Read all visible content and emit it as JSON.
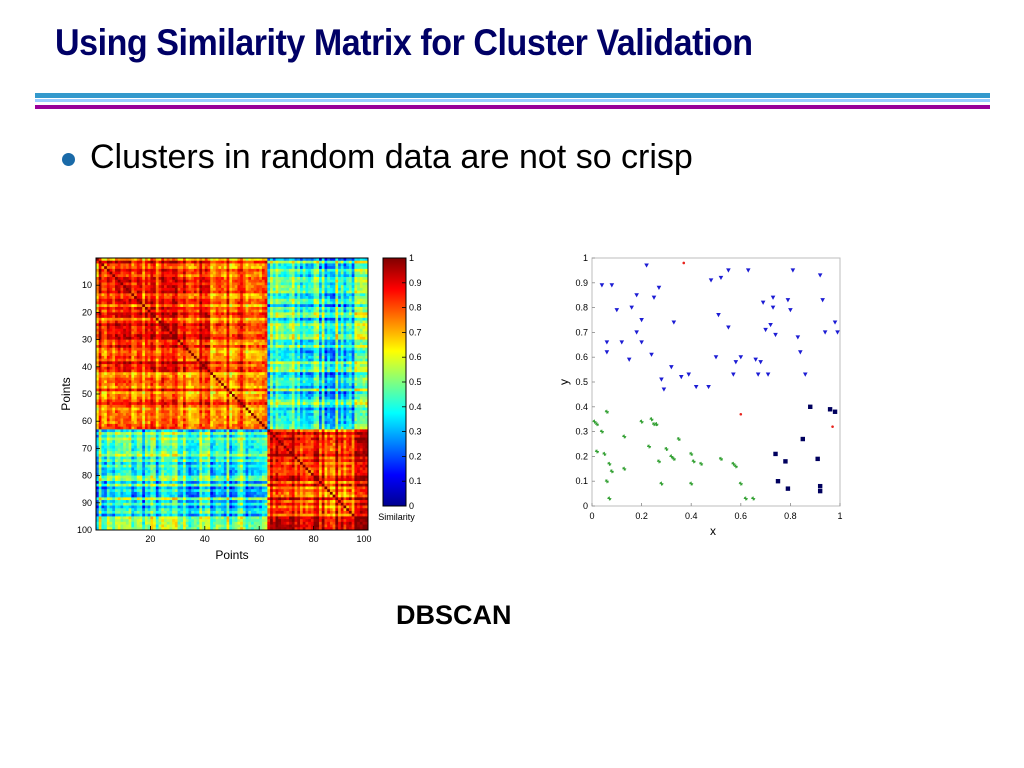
{
  "slide": {
    "title": "Using Similarity Matrix for Cluster Validation",
    "bullet": "Clusters in random data are not so crisp",
    "caption": "DBSCAN",
    "colors": {
      "title": "#000066",
      "rule_teal": "#3399cc",
      "rule_lightblue": "#99ccff",
      "rule_purple": "#990099",
      "bullet_dot": "#1a6aa8"
    }
  },
  "chart_data": [
    {
      "type": "heatmap",
      "xlabel": "Points",
      "ylabel": "Points",
      "xticks": [
        20,
        40,
        60,
        80,
        100
      ],
      "yticks": [
        10,
        20,
        30,
        40,
        50,
        60,
        70,
        80,
        90,
        100
      ],
      "xlim": [
        0,
        100
      ],
      "ylim": [
        0,
        100
      ],
      "colormap": "jet",
      "clusters": [
        {
          "start": 0,
          "end": 63
        },
        {
          "start": 63,
          "end": 100
        }
      ],
      "within_cluster_similarity": 0.82,
      "between_cluster_similarity": 0.4,
      "colorbar": {
        "label": "Similarity",
        "ticks": [
          0,
          0.1,
          0.2,
          0.3,
          0.4,
          0.5,
          0.6,
          0.7,
          0.8,
          0.9,
          1
        ],
        "range": [
          0,
          1
        ]
      }
    },
    {
      "type": "scatter",
      "xlabel": "x",
      "ylabel": "y",
      "xlim": [
        0,
        1
      ],
      "ylim": [
        0,
        1
      ],
      "xticks": [
        0,
        0.2,
        0.4,
        0.6,
        0.8,
        1
      ],
      "yticks": [
        0,
        0.1,
        0.2,
        0.3,
        0.4,
        0.5,
        0.6,
        0.7,
        0.8,
        0.9,
        1
      ],
      "series": [
        {
          "marker": "triangle-down",
          "color": "#1c1cd4",
          "points": [
            [
              0.04,
              0.89
            ],
            [
              0.08,
              0.89
            ],
            [
              0.22,
              0.97
            ],
            [
              0.18,
              0.85
            ],
            [
              0.25,
              0.84
            ],
            [
              0.27,
              0.88
            ],
            [
              0.16,
              0.8
            ],
            [
              0.1,
              0.79
            ],
            [
              0.06,
              0.66
            ],
            [
              0.06,
              0.62
            ],
            [
              0.12,
              0.66
            ],
            [
              0.15,
              0.59
            ],
            [
              0.18,
              0.7
            ],
            [
              0.2,
              0.66
            ],
            [
              0.24,
              0.61
            ],
            [
              0.28,
              0.51
            ],
            [
              0.29,
              0.47
            ],
            [
              0.32,
              0.56
            ],
            [
              0.36,
              0.52
            ],
            [
              0.39,
              0.53
            ],
            [
              0.42,
              0.48
            ],
            [
              0.47,
              0.48
            ],
            [
              0.33,
              0.74
            ],
            [
              0.48,
              0.91
            ],
            [
              0.52,
              0.92
            ],
            [
              0.51,
              0.77
            ],
            [
              0.55,
              0.95
            ],
            [
              0.55,
              0.72
            ],
            [
              0.58,
              0.58
            ],
            [
              0.6,
              0.6
            ],
            [
              0.57,
              0.53
            ],
            [
              0.63,
              0.95
            ],
            [
              0.66,
              0.59
            ],
            [
              0.68,
              0.58
            ],
            [
              0.67,
              0.53
            ],
            [
              0.71,
              0.53
            ],
            [
              0.69,
              0.82
            ],
            [
              0.73,
              0.8
            ],
            [
              0.72,
              0.73
            ],
            [
              0.7,
              0.71
            ],
            [
              0.74,
              0.69
            ],
            [
              0.73,
              0.84
            ],
            [
              0.79,
              0.83
            ],
            [
              0.8,
              0.79
            ],
            [
              0.81,
              0.95
            ],
            [
              0.83,
              0.68
            ],
            [
              0.84,
              0.62
            ],
            [
              0.86,
              0.53
            ],
            [
              0.92,
              0.93
            ],
            [
              0.93,
              0.83
            ],
            [
              0.94,
              0.7
            ],
            [
              0.98,
              0.74
            ],
            [
              0.99,
              0.7
            ],
            [
              0.5,
              0.6
            ],
            [
              0.2,
              0.75
            ]
          ]
        },
        {
          "marker": "square",
          "color": "#00005e",
          "points": [
            [
              0.88,
              0.4
            ],
            [
              0.96,
              0.39
            ],
            [
              0.98,
              0.38
            ],
            [
              0.85,
              0.27
            ],
            [
              0.74,
              0.21
            ],
            [
              0.78,
              0.18
            ],
            [
              0.91,
              0.19
            ],
            [
              0.75,
              0.1
            ],
            [
              0.79,
              0.07
            ],
            [
              0.92,
              0.08
            ],
            [
              0.92,
              0.06
            ]
          ]
        },
        {
          "marker": "asterisk",
          "color": "#2e9e2e",
          "points": [
            [
              0.02,
              0.33
            ],
            [
              0.04,
              0.3
            ],
            [
              0.06,
              0.38
            ],
            [
              0.01,
              0.34
            ],
            [
              0.02,
              0.22
            ],
            [
              0.05,
              0.21
            ],
            [
              0.07,
              0.17
            ],
            [
              0.08,
              0.14
            ],
            [
              0.06,
              0.1
            ],
            [
              0.13,
              0.15
            ],
            [
              0.2,
              0.34
            ],
            [
              0.24,
              0.35
            ],
            [
              0.25,
              0.33
            ],
            [
              0.26,
              0.33
            ],
            [
              0.23,
              0.24
            ],
            [
              0.27,
              0.18
            ],
            [
              0.3,
              0.23
            ],
            [
              0.32,
              0.2
            ],
            [
              0.28,
              0.09
            ],
            [
              0.33,
              0.19
            ],
            [
              0.4,
              0.21
            ],
            [
              0.41,
              0.18
            ],
            [
              0.44,
              0.17
            ],
            [
              0.4,
              0.09
            ],
            [
              0.52,
              0.19
            ],
            [
              0.57,
              0.17
            ],
            [
              0.58,
              0.16
            ],
            [
              0.6,
              0.09
            ],
            [
              0.07,
              0.03
            ],
            [
              0.62,
              0.03
            ],
            [
              0.65,
              0.03
            ],
            [
              0.13,
              0.28
            ],
            [
              0.35,
              0.27
            ]
          ]
        },
        {
          "marker": "dot",
          "color": "#e8241e",
          "points": [
            [
              0.37,
              0.98
            ],
            [
              0.6,
              0.37
            ],
            [
              0.97,
              0.32
            ]
          ]
        }
      ]
    }
  ]
}
